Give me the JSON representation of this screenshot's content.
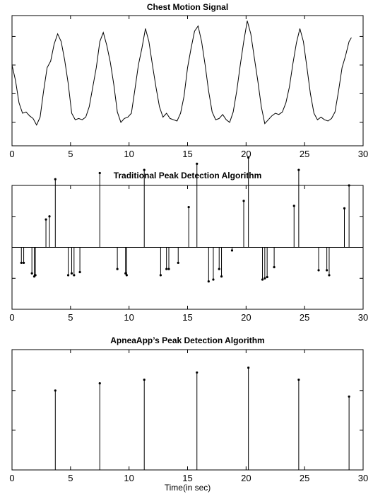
{
  "chart_data": [
    {
      "type": "line",
      "title": "Chest Motion Signal",
      "xlabel": "",
      "ylabel": "",
      "xlim": [
        0,
        30
      ],
      "xticks": [
        0,
        5,
        10,
        15,
        20,
        25,
        30
      ],
      "ylim": [
        0,
        1
      ],
      "yticks": [
        0.18,
        0.4,
        0.62,
        0.84
      ],
      "grid": false,
      "x": [
        0,
        0.3,
        0.6,
        0.9,
        1.2,
        1.5,
        1.8,
        2.1,
        2.4,
        2.7,
        3.0,
        3.3,
        3.6,
        3.9,
        4.2,
        4.5,
        4.8,
        5.1,
        5.4,
        5.7,
        6.0,
        6.3,
        6.6,
        6.9,
        7.2,
        7.5,
        7.8,
        8.1,
        8.4,
        8.7,
        9.0,
        9.3,
        9.6,
        9.9,
        10.2,
        10.5,
        10.8,
        11.1,
        11.4,
        11.7,
        12.0,
        12.3,
        12.6,
        12.9,
        13.2,
        13.5,
        13.8,
        14.1,
        14.4,
        14.7,
        15.0,
        15.3,
        15.6,
        15.9,
        16.2,
        16.5,
        16.8,
        17.1,
        17.4,
        17.7,
        18.0,
        18.3,
        18.6,
        18.9,
        19.2,
        19.5,
        19.8,
        20.1,
        20.4,
        20.7,
        21.0,
        21.3,
        21.6,
        21.9,
        22.2,
        22.5,
        22.8,
        23.1,
        23.4,
        23.7,
        24.0,
        24.3,
        24.6,
        24.9,
        25.2,
        25.5,
        25.8,
        26.1,
        26.4,
        26.7,
        27.0,
        27.3,
        27.6,
        27.9,
        28.2,
        28.5,
        28.8,
        29.0
      ],
      "values": [
        0.62,
        0.5,
        0.33,
        0.25,
        0.26,
        0.23,
        0.21,
        0.16,
        0.22,
        0.42,
        0.6,
        0.65,
        0.78,
        0.86,
        0.8,
        0.66,
        0.48,
        0.25,
        0.2,
        0.21,
        0.2,
        0.22,
        0.3,
        0.45,
        0.6,
        0.8,
        0.87,
        0.77,
        0.64,
        0.47,
        0.26,
        0.18,
        0.21,
        0.22,
        0.25,
        0.43,
        0.62,
        0.75,
        0.9,
        0.8,
        0.62,
        0.45,
        0.3,
        0.22,
        0.25,
        0.21,
        0.2,
        0.19,
        0.25,
        0.38,
        0.6,
        0.75,
        0.88,
        0.92,
        0.8,
        0.62,
        0.42,
        0.26,
        0.2,
        0.21,
        0.24,
        0.2,
        0.18,
        0.26,
        0.42,
        0.62,
        0.8,
        0.96,
        0.86,
        0.68,
        0.5,
        0.3,
        0.17,
        0.2,
        0.23,
        0.25,
        0.24,
        0.26,
        0.33,
        0.45,
        0.63,
        0.79,
        0.9,
        0.8,
        0.6,
        0.4,
        0.25,
        0.2,
        0.22,
        0.2,
        0.19,
        0.21,
        0.26,
        0.42,
        0.6,
        0.69,
        0.8,
        0.83
      ]
    },
    {
      "type": "stem",
      "title": "Traditional Peak Detection Algorithm",
      "xlabel": "",
      "ylabel": "",
      "xlim": [
        0,
        30
      ],
      "xticks": [
        0,
        5,
        10,
        15,
        20,
        25,
        30
      ],
      "ylim": [
        -1,
        1
      ],
      "yticks": [
        -0.5,
        0,
        0.5
      ],
      "grid": false,
      "x": [
        0.8,
        1.0,
        1.7,
        1.9,
        2.0,
        2.9,
        3.2,
        3.7,
        4.8,
        5.1,
        5.3,
        5.8,
        7.5,
        9.0,
        9.7,
        9.8,
        11.3,
        12.7,
        13.2,
        13.4,
        14.2,
        15.1,
        15.8,
        16.8,
        17.2,
        17.7,
        17.9,
        18.8,
        19.8,
        20.2,
        21.4,
        21.6,
        21.8,
        22.4,
        24.1,
        24.5,
        26.2,
        26.9,
        27.1,
        28.4,
        28.8
      ],
      "values": [
        -0.25,
        -0.25,
        -0.42,
        -0.47,
        -0.45,
        0.45,
        0.5,
        1.1,
        -0.45,
        -0.42,
        -0.45,
        -0.4,
        1.2,
        -0.35,
        -0.42,
        -0.45,
        1.25,
        -0.45,
        -0.35,
        -0.35,
        -0.25,
        0.65,
        1.35,
        -0.55,
        -0.52,
        -0.35,
        -0.47,
        -0.05,
        0.75,
        1.45,
        -0.52,
        -0.5,
        -0.48,
        -0.32,
        0.67,
        1.25,
        -0.37,
        -0.37,
        -0.45,
        0.63,
        1.0
      ]
    },
    {
      "type": "stem",
      "title": "ApneaApp’s Peak Detection Algorithm",
      "xlabel": "Time(in sec)",
      "ylabel": "",
      "xlim": [
        0,
        30
      ],
      "xticks": [
        0,
        5,
        10,
        15,
        20,
        25,
        30
      ],
      "ylim": [
        0,
        1
      ],
      "yticks": [
        0.33,
        0.66
      ],
      "grid": false,
      "x": [
        3.7,
        7.5,
        11.3,
        15.8,
        20.2,
        24.5,
        28.8
      ],
      "values": [
        0.66,
        0.72,
        0.75,
        0.81,
        0.85,
        0.75,
        0.61
      ]
    }
  ]
}
